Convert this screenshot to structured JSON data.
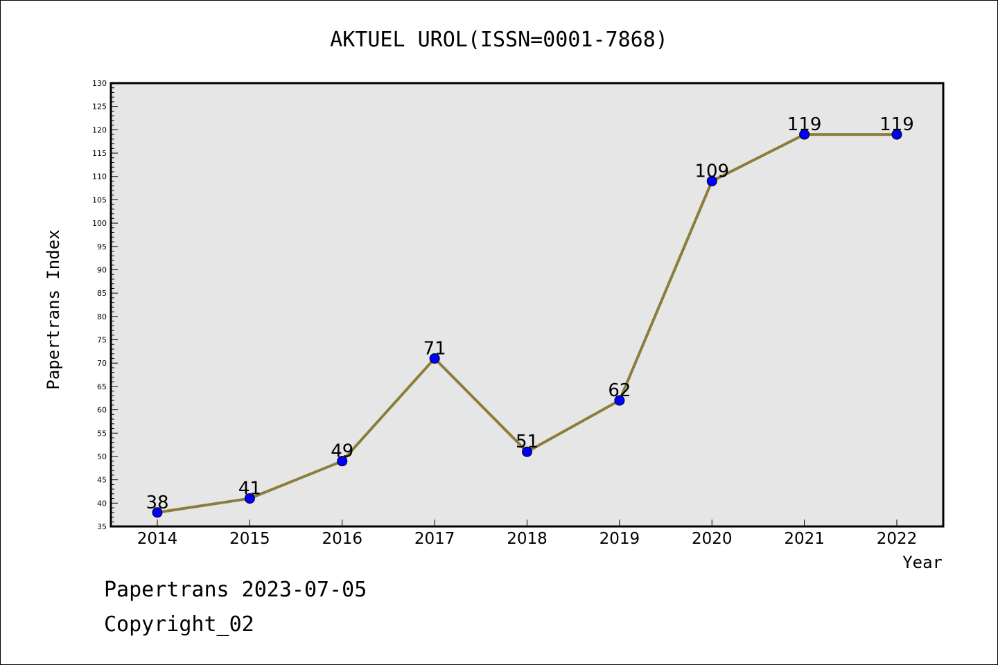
{
  "chart_data": {
    "type": "line",
    "title": "AKTUEL UROL(ISSN=0001-7868)",
    "xlabel": "Year",
    "ylabel": "Papertrans Index",
    "categories": [
      "2014",
      "2015",
      "2016",
      "2017",
      "2018",
      "2019",
      "2020",
      "2021",
      "2022"
    ],
    "series": [
      {
        "values": [
          38,
          41,
          49,
          71,
          51,
          62,
          109,
          119,
          119
        ],
        "line_color": "#8b7d3a",
        "marker_color": "#0000ff"
      }
    ],
    "ylim": [
      35,
      130
    ],
    "yticks": [
      35,
      40,
      45,
      50,
      55,
      60,
      65,
      70,
      75,
      80,
      85,
      90,
      95,
      100,
      105,
      110,
      115,
      120,
      125,
      130
    ],
    "plot_background": "#e6e6e6",
    "grid": false,
    "data_labels": true
  },
  "footer": {
    "date_text": "Papertrans 2023-07-05",
    "copyright_text": "Copyright_02"
  }
}
